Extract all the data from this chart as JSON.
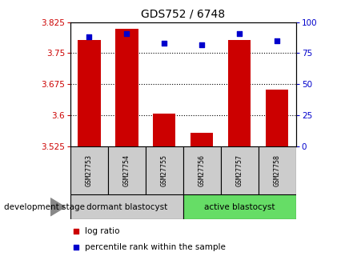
{
  "title": "GDS752 / 6748",
  "samples": [
    "GSM27753",
    "GSM27754",
    "GSM27755",
    "GSM27756",
    "GSM27757",
    "GSM27758"
  ],
  "log_ratio": [
    3.782,
    3.808,
    3.603,
    3.557,
    3.782,
    3.662
  ],
  "percentile_rank": [
    88,
    91,
    83,
    82,
    91,
    85
  ],
  "baseline": 3.525,
  "ylim_left": [
    3.525,
    3.825
  ],
  "ylim_right": [
    0,
    100
  ],
  "yticks_left": [
    3.525,
    3.6,
    3.675,
    3.75,
    3.825
  ],
  "yticks_right": [
    0,
    25,
    50,
    75,
    100
  ],
  "ytick_labels_left": [
    "3.525",
    "3.6",
    "3.675",
    "3.75",
    "3.825"
  ],
  "ytick_labels_right": [
    "0",
    "25",
    "50",
    "75",
    "100"
  ],
  "gridlines": [
    3.6,
    3.675,
    3.75
  ],
  "group1_label": "dormant blastocyst",
  "group2_label": "active blastocyst",
  "group1_color": "#cccccc",
  "group2_color": "#66dd66",
  "bar_color": "#cc0000",
  "dot_color": "#0000cc",
  "bar_width": 0.6,
  "dev_stage_label": "development stage",
  "legend_bar_label": "log ratio",
  "legend_dot_label": "percentile rank within the sample",
  "left_axis_color": "#cc0000",
  "right_axis_color": "#0000cc"
}
